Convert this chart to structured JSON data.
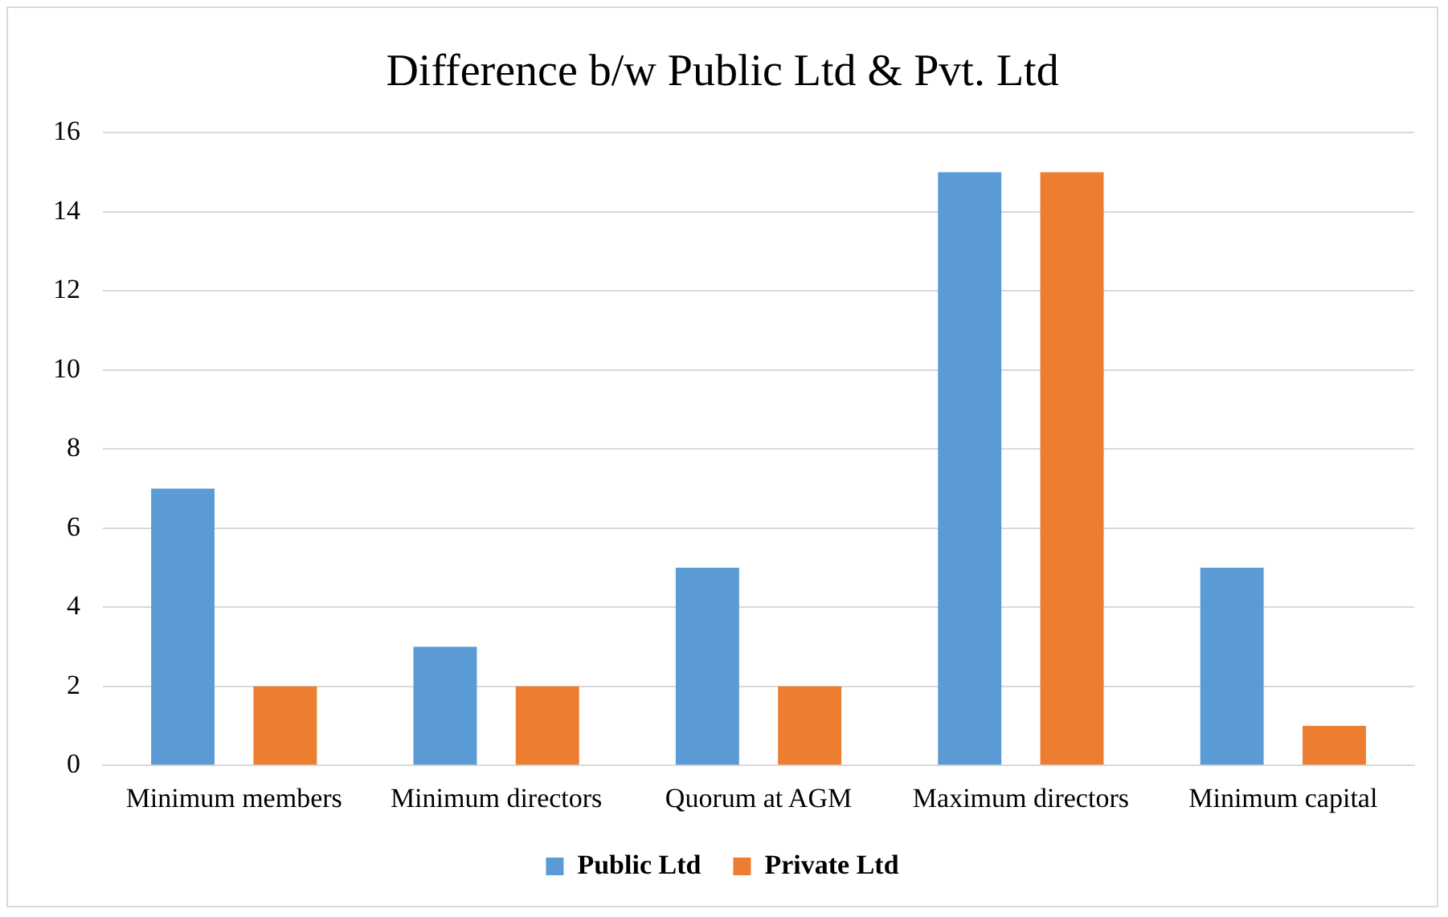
{
  "chart_data": {
    "type": "bar",
    "title": "Difference b/w Public Ltd & Pvt. Ltd",
    "categories": [
      "Minimum members",
      "Minimum directors",
      "Quorum at AGM",
      "Maximum directors",
      "Minimum capital"
    ],
    "series": [
      {
        "name": "Public Ltd",
        "color": "#5b9bd5",
        "values": [
          7,
          3,
          5,
          15,
          5
        ]
      },
      {
        "name": "Private Ltd",
        "color": "#ed7d31",
        "values": [
          2,
          2,
          2,
          15,
          1
        ]
      }
    ],
    "ylim": [
      0,
      16
    ],
    "yticks": [
      0,
      2,
      4,
      6,
      8,
      10,
      12,
      14,
      16
    ],
    "grid": "y",
    "legend": "bottom"
  }
}
